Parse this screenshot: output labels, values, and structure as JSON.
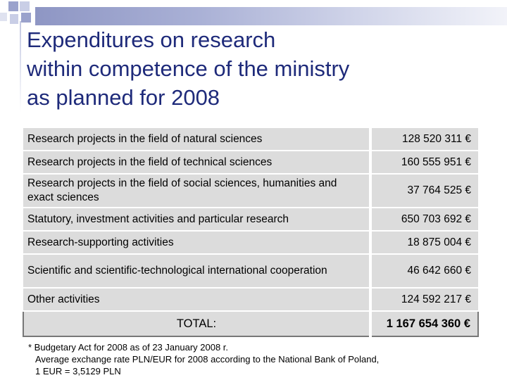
{
  "title": {
    "line1": "Expenditures on research",
    "line2": "within competence of the ministry",
    "line3": "as planned for 2008"
  },
  "table": {
    "rows": [
      {
        "label": "Research projects in the field of natural sciences",
        "amount": "128 520 311 €"
      },
      {
        "label": "Research projects in the field of technical sciences",
        "amount": "160 555 951 €"
      },
      {
        "label": "Research projects in the field of social sciences, humanities and exact sciences",
        "amount": "37 764 525 €"
      },
      {
        "label": "Statutory, investment activities and particular research",
        "amount": "650 703 692 €"
      },
      {
        "label": "Research-supporting activities",
        "amount": "18 875 004 €"
      },
      {
        "label": "Scientific and scientific-technological international cooperation",
        "amount": "46 642 660 €"
      },
      {
        "label": "Other activities",
        "amount": "124 592 217 €"
      }
    ],
    "total": {
      "label": "TOTAL:",
      "amount": "1 167 654 360 €"
    }
  },
  "footnote": {
    "line1": "* Budgetary Act for 2008 as of 23 January 2008 r.",
    "line2": "Average exchange rate PLN/EUR for 2008 according to the National Bank of Poland,",
    "line3": "1 EUR = 3,5129 PLN"
  }
}
